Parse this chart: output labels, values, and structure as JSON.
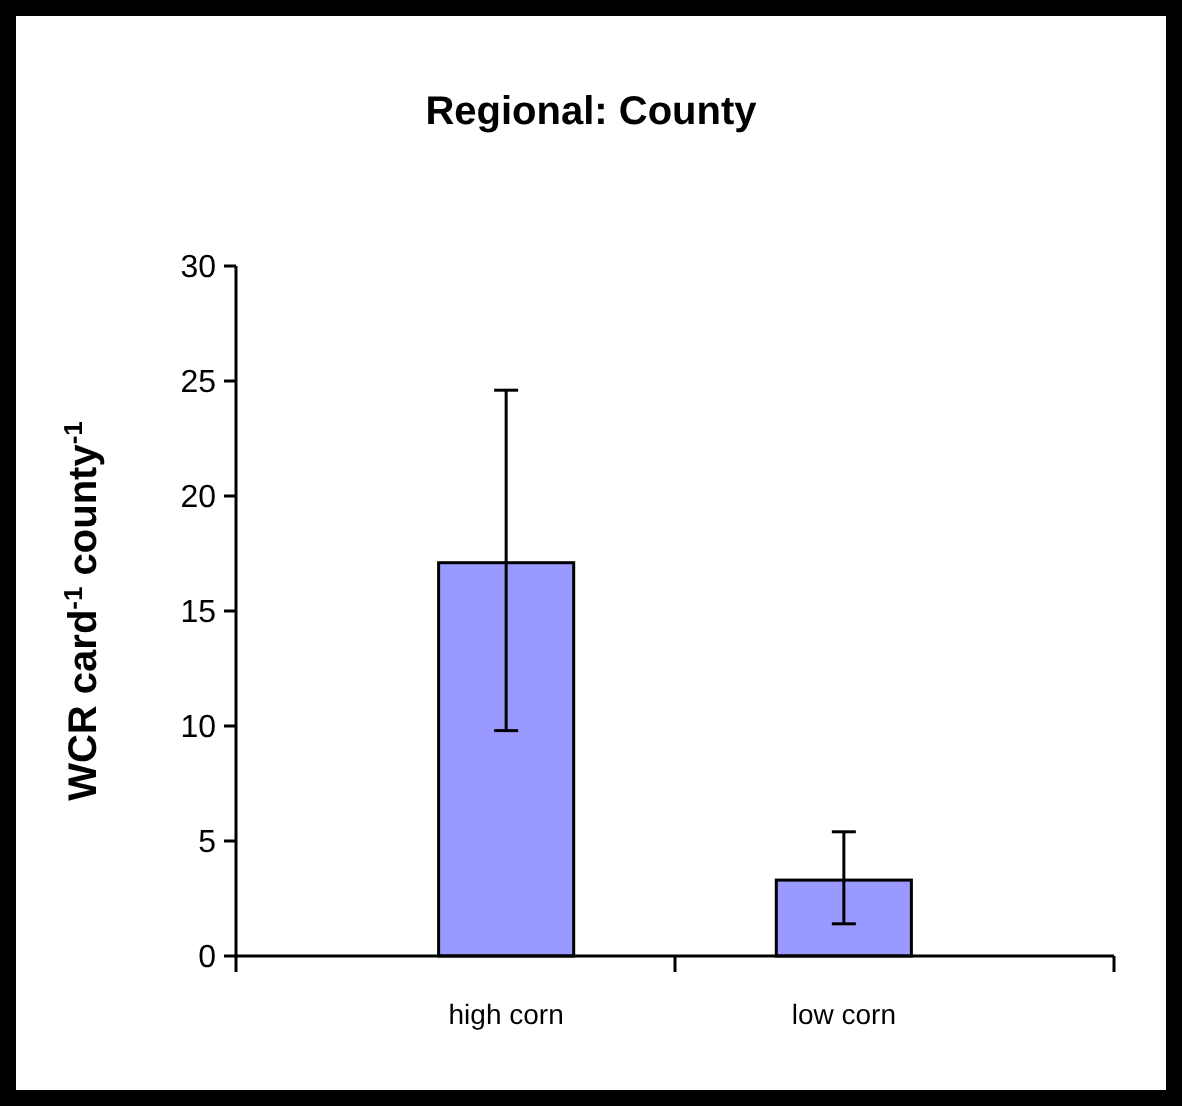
{
  "chart_data": {
    "type": "bar",
    "title": "Regional: County",
    "ylabel": "WCR card$^{-1}$ county$^{-1}$",
    "categories": [
      "high corn",
      "low corn"
    ],
    "values": [
      17.1,
      3.3
    ],
    "color": "#9999ff",
    "errors": [
      [
        9.8,
        24.6
      ],
      [
        1.4,
        5.4
      ]
    ],
    "ylim": [
      0,
      30
    ],
    "yticks": [
      0,
      5,
      10,
      15,
      20,
      25,
      30
    ],
    "grid": false
  }
}
